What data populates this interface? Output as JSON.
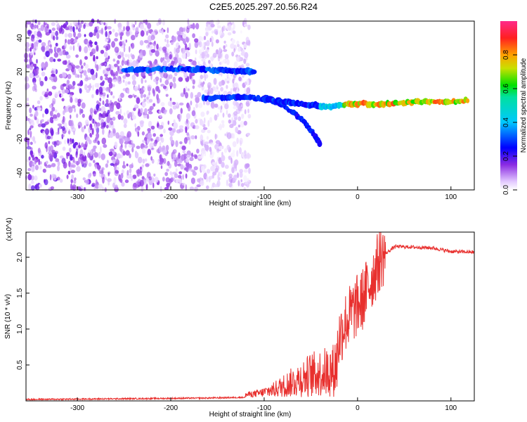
{
  "chart_data": [
    {
      "type": "heatmap",
      "title": "C2E5.2025.297.20.56.R24",
      "xlabel": "Height of straight line (km)",
      "ylabel": "Frequency (Hz)",
      "xlim": [
        -355,
        125
      ],
      "ylim": [
        -50,
        50
      ],
      "xticks": [
        -300,
        -200,
        -100,
        0,
        100
      ],
      "yticks": [
        -40,
        -20,
        0,
        20,
        40
      ],
      "colorbar": {
        "label": "Normalized spectral amplitude",
        "range": [
          0,
          1
        ],
        "ticks": [
          0.0,
          0.2,
          0.4,
          0.6,
          0.8
        ]
      },
      "features": [
        {
          "name": "noise region",
          "x_range": [
            -355,
            -140
          ],
          "amplitude": "low-medium, scattered"
        },
        {
          "name": "upper branch",
          "x": [
            -250,
            -210,
            -180,
            -150,
            -125,
            -110
          ],
          "y": [
            21,
            21.5,
            21.5,
            21,
            20.5,
            20
          ]
        },
        {
          "name": "main descending branch",
          "x": [
            -165,
            -130,
            -100,
            -80,
            -60,
            -45,
            -30,
            -10,
            0,
            30,
            60,
            90,
            120
          ],
          "y": [
            4,
            5,
            4,
            2,
            1,
            0,
            -1,
            1,
            1,
            1,
            2,
            2,
            3
          ]
        },
        {
          "name": "lower branch",
          "x": [
            -100,
            -80,
            -60,
            -48,
            -40
          ],
          "y": [
            5,
            0,
            -8,
            -16,
            -23
          ]
        }
      ]
    },
    {
      "type": "line",
      "xlabel": "Height of straight line (km)",
      "ylabel": "SNR (10 * v/v)",
      "y_multiplier": "(x10^4)",
      "xlim": [
        -355,
        125
      ],
      "ylim": [
        0,
        2.35
      ],
      "xticks": [
        -300,
        -200,
        -100,
        0,
        100
      ],
      "yticks": [
        0.5,
        1.0,
        1.5,
        2.0
      ],
      "series": [
        {
          "name": "SNR",
          "color": "#e8302e",
          "x": [
            -355,
            -300,
            -250,
            -200,
            -160,
            -120,
            -105,
            -90,
            -70,
            -50,
            -35,
            -25,
            -20,
            -15,
            -5,
            5,
            15,
            25,
            40,
            60,
            80,
            100,
            125
          ],
          "y": [
            0.02,
            0.025,
            0.03,
            0.035,
            0.04,
            0.05,
            0.08,
            0.15,
            0.3,
            0.45,
            0.5,
            0.55,
            0.85,
            1.05,
            1.25,
            1.4,
            1.7,
            2.0,
            2.15,
            2.14,
            2.13,
            2.08,
            2.07
          ]
        }
      ]
    }
  ]
}
